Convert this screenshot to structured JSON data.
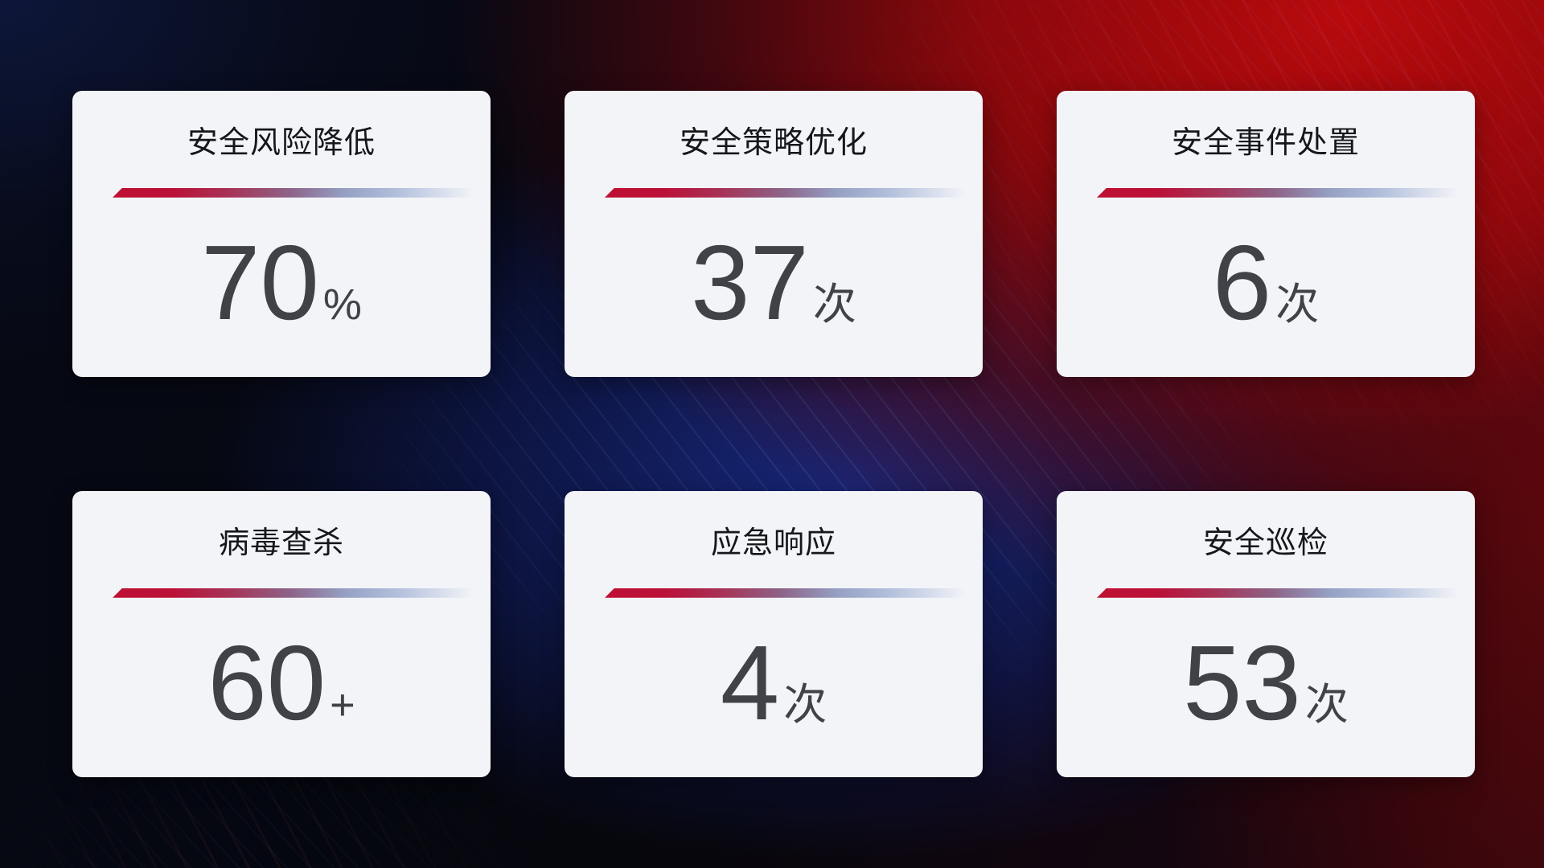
{
  "theme": {
    "card_background": "#f3f4f8",
    "title_color": "#16171b",
    "value_color": "#404248",
    "divider_red": "#bf1034",
    "divider_purple": "#8d6387",
    "divider_blue": "#b4c1dd",
    "background_red": "#bb0a0d",
    "background_blue": "#1a2c8c",
    "background_dark": "#05060d"
  },
  "cards": [
    {
      "title": "安全风险降低",
      "value": "70",
      "unit": "%"
    },
    {
      "title": "安全策略优化",
      "value": "37",
      "unit": "次"
    },
    {
      "title": "安全事件处置",
      "value": "6",
      "unit": "次"
    },
    {
      "title": "病毒查杀",
      "value": "60",
      "unit": "+"
    },
    {
      "title": "应急响应",
      "value": "4",
      "unit": "次"
    },
    {
      "title": "安全巡检",
      "value": "53",
      "unit": "次"
    }
  ]
}
